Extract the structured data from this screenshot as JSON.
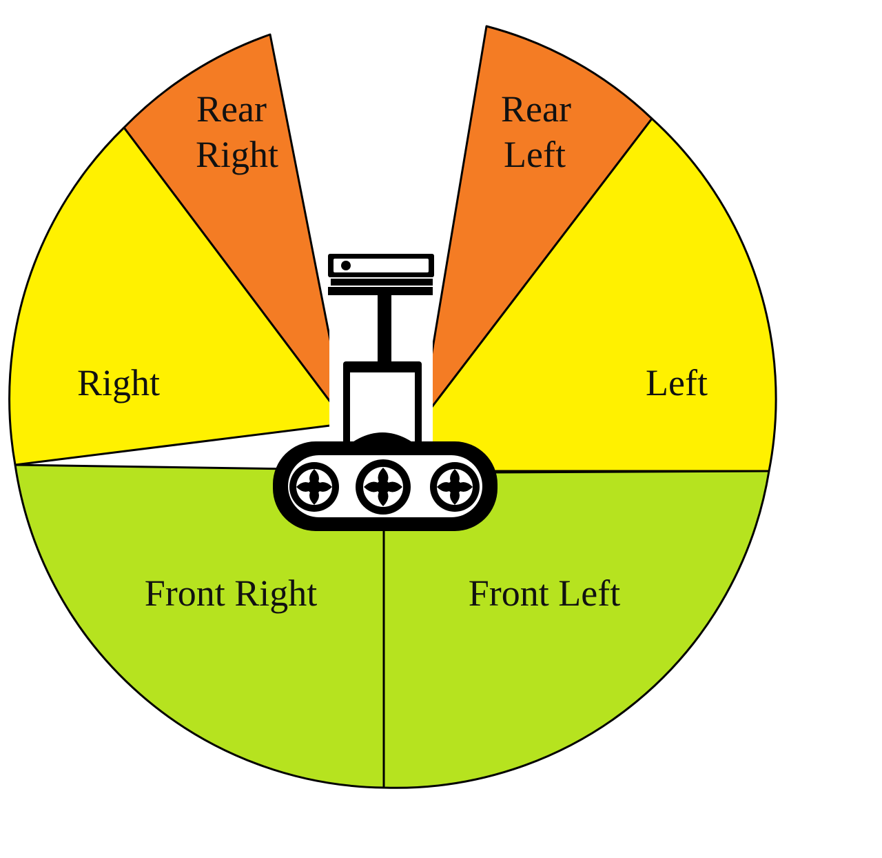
{
  "colors": {
    "rear": "#f47c24",
    "side": "#fff100",
    "front": "#b6e31f",
    "outline": "#000000",
    "background": "#ffffff"
  },
  "zones": {
    "rear_right": {
      "line1": "Rear",
      "line2": "Right"
    },
    "rear_left": {
      "line1": "Rear",
      "line2": "Left"
    },
    "right": {
      "label": "Right"
    },
    "left": {
      "label": "Left"
    },
    "front_right": {
      "label": "Front Right"
    },
    "front_left": {
      "label": "Front Left"
    }
  },
  "robot": {
    "icon": "tracked-robot-icon"
  }
}
